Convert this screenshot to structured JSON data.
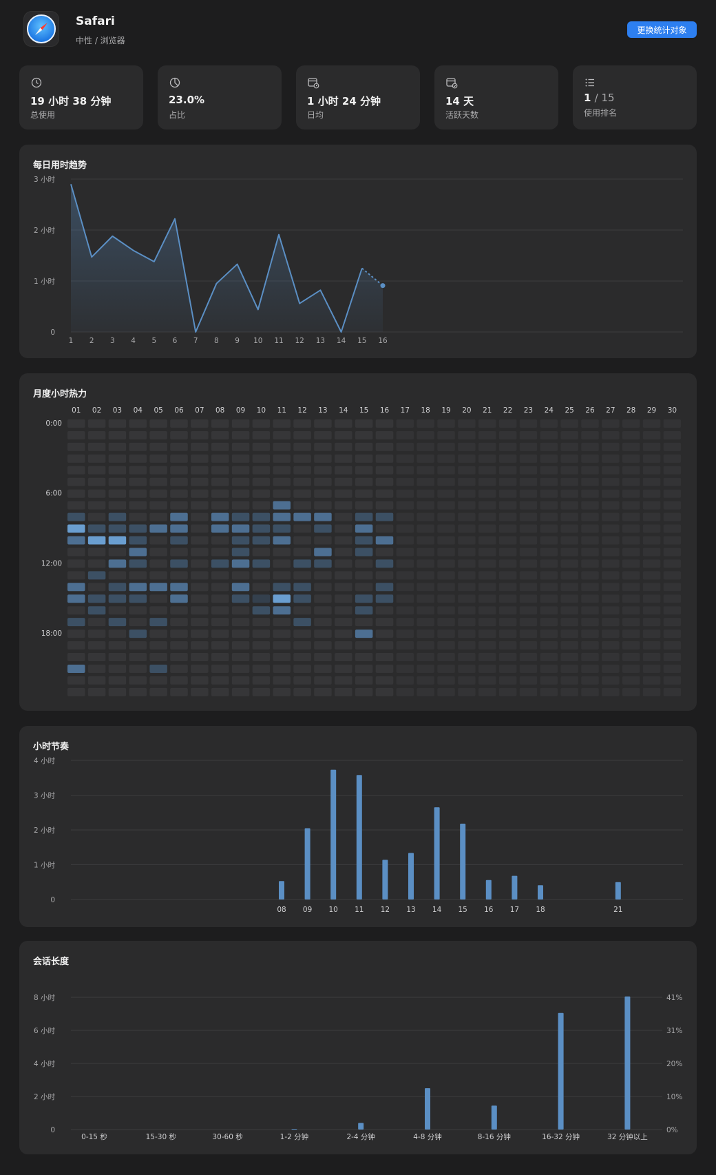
{
  "app": {
    "name": "Safari",
    "category": "中性 / 浏览器",
    "switch_label": "更换统计对象",
    "icon": "safari-compass-icon"
  },
  "stats": [
    {
      "icon": "clock-icon",
      "value": "19 小时 38 分钟",
      "label": "总使用"
    },
    {
      "icon": "pie-chart-icon",
      "value": "23.0%",
      "label": "占比"
    },
    {
      "icon": "calendar-clock-icon",
      "value": "1 小时 24 分钟",
      "label": "日均"
    },
    {
      "icon": "calendar-check-icon",
      "value": "14 天",
      "label": "活跃天数"
    },
    {
      "icon": "list-icon",
      "value": "1",
      "value_suffix": "/ 15",
      "label": "使用排名"
    }
  ],
  "colors": {
    "accent": "#5b8fc4",
    "button": "#2d7ff0",
    "panel": "#2b2b2c",
    "background": "#1d1d1e"
  },
  "daily_trend": {
    "title": "每日用时趋势",
    "chart_data": {
      "type": "line",
      "x": [
        1,
        2,
        3,
        4,
        5,
        6,
        7,
        8,
        9,
        10,
        11,
        12,
        13,
        14,
        15,
        16
      ],
      "values": [
        2.9,
        1.47,
        1.88,
        1.6,
        1.38,
        2.22,
        0.0,
        0.95,
        1.33,
        0.44,
        1.91,
        0.56,
        0.82,
        0.0,
        1.25,
        0.91
      ],
      "y_ticks": [
        "0",
        "1 小时",
        "2 小时",
        "3 小时"
      ],
      "ylim": [
        0,
        3
      ],
      "x_range": [
        1,
        30
      ],
      "last_segment_dashed": true
    }
  },
  "heatmap": {
    "title": "月度小时热力",
    "chart_data": {
      "type": "heatmap",
      "days": [
        "01",
        "02",
        "03",
        "04",
        "05",
        "06",
        "07",
        "08",
        "09",
        "10",
        "11",
        "12",
        "13",
        "14",
        "15",
        "16",
        "17",
        "18",
        "19",
        "20",
        "21",
        "22",
        "23",
        "24",
        "25",
        "26",
        "27",
        "28",
        "29",
        "30"
      ],
      "hour_labels": [
        "0:00",
        "6:00",
        "12:00",
        "18:00"
      ],
      "hours": 24,
      "cells": [
        [
          1,
          8,
          1
        ],
        [
          1,
          9,
          3
        ],
        [
          1,
          10,
          2
        ],
        [
          1,
          14,
          2
        ],
        [
          1,
          15,
          2
        ],
        [
          1,
          17,
          1
        ],
        [
          1,
          21,
          2
        ],
        [
          2,
          9,
          1
        ],
        [
          2,
          10,
          3
        ],
        [
          2,
          13,
          1
        ],
        [
          2,
          15,
          1
        ],
        [
          2,
          16,
          1
        ],
        [
          3,
          8,
          1
        ],
        [
          3,
          9,
          1
        ],
        [
          3,
          10,
          3
        ],
        [
          3,
          12,
          2
        ],
        [
          3,
          14,
          1
        ],
        [
          3,
          15,
          1
        ],
        [
          3,
          17,
          1
        ],
        [
          4,
          9,
          1
        ],
        [
          4,
          10,
          1
        ],
        [
          4,
          11,
          2
        ],
        [
          4,
          12,
          1
        ],
        [
          4,
          14,
          2
        ],
        [
          4,
          15,
          1
        ],
        [
          4,
          18,
          1
        ],
        [
          5,
          9,
          2
        ],
        [
          5,
          14,
          2
        ],
        [
          5,
          17,
          1
        ],
        [
          5,
          21,
          1
        ],
        [
          6,
          8,
          2
        ],
        [
          6,
          9,
          2
        ],
        [
          6,
          10,
          1
        ],
        [
          6,
          12,
          1
        ],
        [
          6,
          14,
          2
        ],
        [
          6,
          15,
          2
        ],
        [
          8,
          8,
          2
        ],
        [
          8,
          9,
          2
        ],
        [
          8,
          12,
          1
        ],
        [
          9,
          8,
          1
        ],
        [
          9,
          9,
          2
        ],
        [
          9,
          10,
          1
        ],
        [
          9,
          11,
          1
        ],
        [
          9,
          12,
          2
        ],
        [
          9,
          14,
          2
        ],
        [
          9,
          15,
          1
        ],
        [
          10,
          8,
          1
        ],
        [
          10,
          9,
          1
        ],
        [
          10,
          10,
          1
        ],
        [
          10,
          12,
          1
        ],
        [
          10,
          15,
          0.5
        ],
        [
          10,
          16,
          1
        ],
        [
          11,
          7,
          2
        ],
        [
          11,
          8,
          2
        ],
        [
          11,
          9,
          1
        ],
        [
          11,
          10,
          2
        ],
        [
          11,
          14,
          1
        ],
        [
          11,
          15,
          3
        ],
        [
          11,
          16,
          2
        ],
        [
          12,
          8,
          2
        ],
        [
          12,
          12,
          1
        ],
        [
          12,
          14,
          1
        ],
        [
          12,
          15,
          1
        ],
        [
          12,
          17,
          1
        ],
        [
          13,
          8,
          2
        ],
        [
          13,
          9,
          1
        ],
        [
          13,
          11,
          2
        ],
        [
          13,
          12,
          1
        ],
        [
          15,
          8,
          1
        ],
        [
          15,
          9,
          2
        ],
        [
          15,
          10,
          1
        ],
        [
          15,
          11,
          1
        ],
        [
          15,
          15,
          1
        ],
        [
          15,
          16,
          1
        ],
        [
          15,
          18,
          2
        ],
        [
          16,
          8,
          1
        ],
        [
          16,
          10,
          2
        ],
        [
          16,
          12,
          1
        ],
        [
          16,
          14,
          1
        ],
        [
          16,
          15,
          1
        ]
      ]
    }
  },
  "hourly": {
    "title": "小时节奏",
    "chart_data": {
      "type": "bar",
      "categories": [
        "08",
        "09",
        "10",
        "11",
        "12",
        "13",
        "14",
        "15",
        "16",
        "17",
        "18",
        "21"
      ],
      "hours": [
        8,
        9,
        10,
        11,
        12,
        13,
        14,
        15,
        16,
        17,
        18,
        21
      ],
      "values": [
        0.53,
        2.05,
        3.73,
        3.58,
        1.14,
        1.34,
        2.65,
        2.18,
        0.56,
        0.68,
        0.41,
        0.5
      ],
      "y_ticks": [
        "0",
        "1 小时",
        "2 小时",
        "3 小时",
        "4 小时"
      ],
      "ylim": [
        0,
        4
      ]
    }
  },
  "sessions": {
    "title": "会话长度",
    "chart_data": {
      "type": "bar",
      "categories": [
        "0-15 秒",
        "15-30 秒",
        "30-60 秒",
        "1-2 分钟",
        "2-4 分钟",
        "4-8 分钟",
        "8-16 分钟",
        "16-32 分钟",
        "32 分钟以上"
      ],
      "values": [
        0.0,
        0.0,
        0.0,
        0.04,
        0.4,
        2.5,
        1.45,
        7.05,
        8.05
      ],
      "y_ticks": [
        "0",
        "2 小时",
        "4 小时",
        "6 小时",
        "8 小时"
      ],
      "y2_ticks": [
        "0%",
        "10%",
        "20%",
        "31%",
        "41%"
      ],
      "ylim": [
        0,
        8
      ]
    }
  }
}
